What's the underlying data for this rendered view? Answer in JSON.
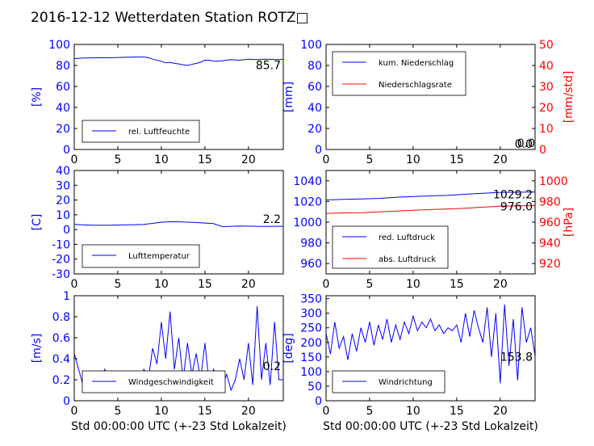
{
  "title": "2016-12-12 Wetterdaten Station ROTZ□",
  "colors": {
    "primary": "#0000ff",
    "secondary": "#ff0000",
    "axis": "#000000",
    "label_box": "#b0b0b0"
  },
  "chart_data": [
    {
      "id": "humidity",
      "type": "line",
      "xlabel": "",
      "ylabel": "[%]",
      "xlim": [
        0,
        24
      ],
      "ylim": [
        0,
        100
      ],
      "xticks": [
        0,
        5,
        10,
        15,
        20
      ],
      "yticks": [
        0,
        20,
        40,
        60,
        80,
        100
      ],
      "series": [
        {
          "name": "rel. Luftfeuchte",
          "color": "#0000ff",
          "x": [
            0,
            1,
            2,
            3,
            4,
            5,
            6,
            7,
            8,
            8.5,
            9,
            10,
            10.5,
            11,
            11.5,
            12,
            12.5,
            13,
            13.5,
            14,
            14.5,
            15,
            15.5,
            16,
            16.5,
            17,
            18,
            19,
            20,
            21,
            22,
            23,
            24
          ],
          "y": [
            86.5,
            87,
            87.2,
            87.3,
            87.3,
            87.6,
            87.8,
            88,
            88,
            87.5,
            86,
            84,
            82.5,
            83,
            82,
            81.5,
            80.5,
            80,
            81,
            82,
            83,
            85,
            85,
            84,
            84,
            84.5,
            85.5,
            85,
            86,
            85.5,
            86,
            85.7,
            85.7
          ]
        }
      ],
      "last_value_label": "85.7"
    },
    {
      "id": "precipitation",
      "type": "line",
      "xlabel": "",
      "ylabel": "[mm]",
      "ylabel_right": "[mm/std]",
      "xlim": [
        0,
        24
      ],
      "ylim": [
        0,
        100
      ],
      "ylim_right": [
        0,
        50
      ],
      "xticks": [
        0,
        5,
        10,
        15,
        20
      ],
      "yticks": [
        0,
        20,
        40,
        60,
        80,
        100
      ],
      "yticks_right": [
        0,
        10,
        20,
        30,
        40,
        50
      ],
      "series": [
        {
          "name": "kum. Niederschlag",
          "color": "#0000ff",
          "axis": "left",
          "x": [
            0,
            24
          ],
          "y": [
            0,
            0
          ]
        },
        {
          "name": "Niederschlagsrate",
          "color": "#ff0000",
          "axis": "right",
          "x": [
            0,
            24
          ],
          "y": [
            0,
            0
          ]
        }
      ],
      "last_value_label": "0.0",
      "last_value_label_right": "0.0"
    },
    {
      "id": "temperature",
      "type": "line",
      "xlabel": "",
      "ylabel": "[C]",
      "xlim": [
        0,
        24
      ],
      "ylim": [
        -30,
        40
      ],
      "xticks": [
        0,
        5,
        10,
        15,
        20
      ],
      "yticks": [
        -30,
        -20,
        -10,
        0,
        10,
        20,
        30,
        40
      ],
      "series": [
        {
          "name": "Lufttemperatur",
          "color": "#0000ff",
          "x": [
            0,
            1,
            2,
            3,
            4,
            5,
            6,
            7,
            8,
            9,
            10,
            11,
            12,
            13,
            14,
            15,
            16,
            17,
            18,
            19,
            20,
            21,
            22,
            23,
            24
          ],
          "y": [
            3.5,
            3.2,
            3.0,
            3.0,
            3.0,
            3.1,
            3.2,
            3.3,
            3.5,
            4.2,
            5.0,
            5.3,
            5.3,
            5.0,
            4.8,
            4.4,
            4.0,
            2.0,
            2.2,
            2.4,
            2.3,
            2.2,
            2.1,
            2.2,
            2.2
          ]
        }
      ],
      "last_value_label": "2.2"
    },
    {
      "id": "pressure",
      "type": "line",
      "xlabel": "",
      "ylabel": "",
      "ylabel_right": "[hPa]",
      "xlim": [
        0,
        24
      ],
      "ylim": [
        950,
        1050
      ],
      "ylim_right": [
        910,
        1010
      ],
      "xticks": [
        0,
        5,
        10,
        15,
        20
      ],
      "yticks": [
        960,
        980,
        1000,
        1020,
        1040
      ],
      "yticks_right": [
        920,
        940,
        960,
        980,
        1000
      ],
      "series": [
        {
          "name": "red. Luftdruck",
          "color": "#0000ff",
          "axis": "left",
          "x": [
            0,
            2,
            4,
            6,
            8,
            10,
            12,
            14,
            16,
            18,
            20,
            22,
            24
          ],
          "y": [
            1021.5,
            1022,
            1022.5,
            1023,
            1024,
            1024.8,
            1025.5,
            1026,
            1027,
            1028,
            1028.8,
            1029,
            1029.2
          ]
        },
        {
          "name": "abs. Luftdruck",
          "color": "#ff0000",
          "axis": "right",
          "x": [
            0,
            2,
            4,
            6,
            8,
            10,
            12,
            14,
            16,
            18,
            20,
            22,
            24
          ],
          "y": [
            968.5,
            969,
            969.2,
            970,
            970.8,
            971.5,
            972.2,
            972.8,
            973.5,
            974.5,
            975.5,
            975.8,
            976.0
          ]
        }
      ],
      "last_value_label": "1029.2",
      "last_value_label_right": "976.0"
    },
    {
      "id": "windspeed",
      "type": "line",
      "xlabel": "Std 00:00:00 UTC (+-23 Std Lokalzeit)",
      "ylabel": "[m/s]",
      "xlim": [
        0,
        24
      ],
      "ylim": [
        0,
        1.0
      ],
      "xticks": [
        0,
        5,
        10,
        15,
        20
      ],
      "yticks": [
        0.0,
        0.2,
        0.4,
        0.6,
        0.8,
        1.0
      ],
      "series": [
        {
          "name": "Windgeschwindigkeit",
          "color": "#0000ff",
          "x": [
            0,
            0.5,
            1,
            1.5,
            2,
            2.5,
            3,
            3.5,
            4,
            4.5,
            5,
            5.5,
            6,
            6.5,
            7,
            7.5,
            8,
            8.5,
            9,
            9.5,
            10,
            10.5,
            11,
            11.5,
            12,
            12.5,
            13,
            13.5,
            14,
            14.5,
            15,
            15.5,
            16,
            16.5,
            17,
            17.5,
            18,
            18.5,
            19,
            19.5,
            20,
            20.5,
            21,
            21.5,
            22,
            22.5,
            23,
            23.5,
            24
          ],
          "y": [
            0.45,
            0.3,
            0.15,
            0.2,
            0.1,
            0.25,
            0.15,
            0.3,
            0.2,
            0.1,
            0.15,
            0.2,
            0.1,
            0.15,
            0.2,
            0.15,
            0.3,
            0.2,
            0.5,
            0.35,
            0.75,
            0.4,
            0.85,
            0.3,
            0.6,
            0.2,
            0.55,
            0.25,
            0.45,
            0.2,
            0.55,
            0.15,
            0.3,
            0.2,
            0.15,
            0.25,
            0.1,
            0.2,
            0.4,
            0.2,
            0.55,
            0.15,
            0.9,
            0.2,
            0.55,
            0.15,
            0.75,
            0.2,
            0.2
          ]
        }
      ],
      "last_value_label": "0.2"
    },
    {
      "id": "winddirection",
      "type": "line",
      "xlabel": "Std 00:00:00 UTC (+-23 Std Lokalzeit)",
      "ylabel": "[deg]",
      "xlim": [
        0,
        24
      ],
      "ylim": [
        0,
        360
      ],
      "xticks": [
        0,
        5,
        10,
        15,
        20
      ],
      "yticks": [
        0,
        50,
        100,
        150,
        200,
        250,
        300,
        350
      ],
      "series": [
        {
          "name": "Windrichtung",
          "color": "#0000ff",
          "x": [
            0,
            0.5,
            1,
            1.5,
            2,
            2.5,
            3,
            3.5,
            4,
            4.5,
            5,
            5.5,
            6,
            6.5,
            7,
            7.5,
            8,
            8.5,
            9,
            9.5,
            10,
            10.5,
            11,
            11.5,
            12,
            12.5,
            13,
            13.5,
            14,
            14.5,
            15,
            15.5,
            16,
            16.5,
            17,
            17.5,
            18,
            18.5,
            19,
            19.5,
            20,
            20.5,
            21,
            21.5,
            22,
            22.5,
            23,
            23.5,
            24
          ],
          "y": [
            230,
            160,
            270,
            180,
            220,
            140,
            230,
            170,
            250,
            200,
            270,
            190,
            260,
            210,
            280,
            200,
            260,
            210,
            270,
            230,
            290,
            240,
            270,
            250,
            280,
            240,
            260,
            230,
            250,
            240,
            260,
            200,
            300,
            220,
            310,
            250,
            200,
            320,
            150,
            300,
            60,
            330,
            120,
            280,
            70,
            320,
            200,
            250,
            153.8
          ]
        }
      ],
      "last_value_label": "153.8"
    }
  ]
}
